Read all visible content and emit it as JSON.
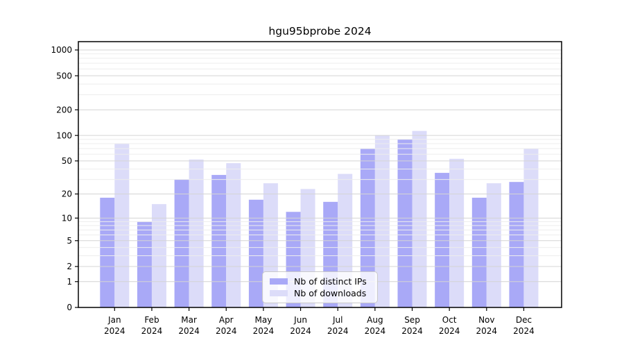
{
  "title": "hgu95bprobe 2024",
  "chart_data": {
    "type": "bar",
    "title": "hgu95bprobe 2024",
    "year": "2024",
    "categories": [
      "Jan",
      "Feb",
      "Mar",
      "Apr",
      "May",
      "Jun",
      "Jul",
      "Aug",
      "Sep",
      "Oct",
      "Nov",
      "Dec"
    ],
    "x_tick_second_line": "2024",
    "series": [
      {
        "name": "Nb of distinct IPs",
        "color": "#a9a9f7",
        "values": [
          18,
          9,
          30,
          34,
          17,
          12,
          16,
          70,
          90,
          36,
          18,
          28
        ]
      },
      {
        "name": "Nb of downloads",
        "color": "#dcdcf9",
        "values": [
          80,
          15,
          52,
          47,
          27,
          23,
          35,
          100,
          113,
          53,
          27,
          70
        ]
      }
    ],
    "y_axis": {
      "scale": "log10(1+x)",
      "ticks": [
        0,
        1,
        2,
        5,
        10,
        20,
        50,
        100,
        200,
        500,
        1000
      ],
      "minor_gridlines": [
        3,
        4,
        6,
        7,
        8,
        9,
        30,
        40,
        60,
        70,
        80,
        90,
        300,
        400,
        600,
        700,
        800,
        900
      ],
      "range": [
        0,
        1000
      ]
    },
    "grid": {
      "on": true,
      "major_color": "#d4d4d4",
      "minor_color": "#ededed",
      "above_bars": true
    },
    "axis_color": "#000000",
    "text_color": "#000000",
    "legend": {
      "position": "lower-center",
      "background": "rgba(255,255,255,0.8)",
      "border_color": "#c9c9c9"
    }
  }
}
